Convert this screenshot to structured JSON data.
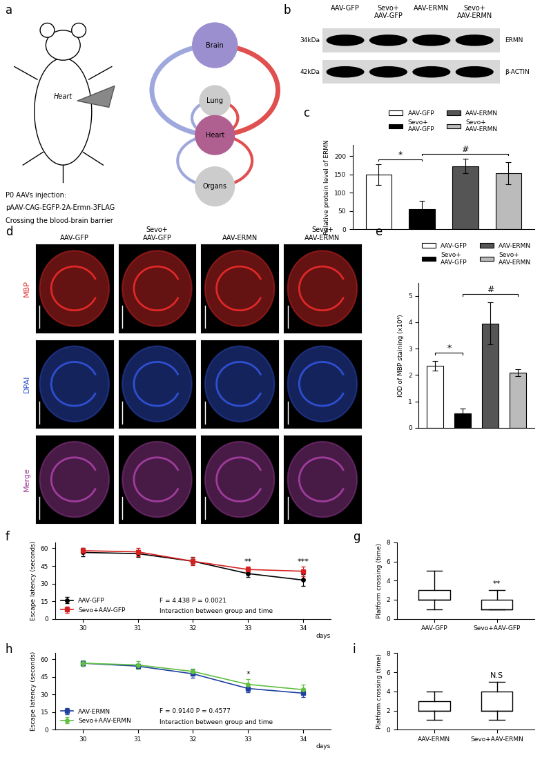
{
  "panel_labels": [
    "a",
    "b",
    "c",
    "d",
    "e",
    "f",
    "g",
    "h",
    "i"
  ],
  "schematic": {
    "mouse_label": "Heart",
    "organs": [
      "Brain",
      "Lung",
      "Heart",
      "Organs"
    ],
    "injection_text": [
      "P0 AAVs injection:",
      "pAAV-CAG-EGFP-2A-Ermn-3FLAG",
      "Crossing the blood-brain barrier"
    ]
  },
  "western_blot": {
    "lanes": [
      "AAV-GFP",
      "Sevo+\nAAV-GFP",
      "AAV-ERMN",
      "Sevo+\nAAV-ERMN"
    ],
    "rows": [
      {
        "size": "34kDa",
        "protein": "ERMN"
      },
      {
        "size": "42kDa",
        "protein": "β-ACTIN"
      }
    ]
  },
  "staining": {
    "columns": [
      "AAV-GFP",
      "Sevo+\nAAV-GFP",
      "AAV-ERMN",
      "Sevo+\nAAV-ERMN"
    ],
    "rows": [
      {
        "label": "MBP",
        "color": "#e02828"
      },
      {
        "label": "DPAI",
        "color": "#2f4fd0"
      },
      {
        "label": "Merge",
        "color": "#a03c9c"
      }
    ]
  },
  "chart_data": [
    {
      "type": "bar",
      "categories": [
        "AAV-GFP",
        "Sevo+\nAAV-GFP",
        "AAV-ERMN",
        "Sevo+\nAAV-ERMN"
      ],
      "values": [
        150,
        55,
        173,
        153
      ],
      "errors": [
        28,
        22,
        20,
        30
      ],
      "colors": [
        "#ffffff",
        "#000000",
        "#555555",
        "#bbbbbb"
      ],
      "ylabel": "Relative protein level of ERMN",
      "ylim": [
        0,
        230
      ],
      "yticks": [
        0,
        50,
        100,
        150,
        200
      ],
      "tick_labels": "y",
      "legend": "lower center",
      "comparisons": [
        {
          "groups": [
            "AAV-GFP",
            "Sevo+\nAAV-GFP"
          ],
          "label": "*"
        },
        {
          "groups": [
            "Sevo+\nAAV-GFP",
            "Sevo+\nAAV-ERMN"
          ],
          "label": "#"
        }
      ]
    },
    {
      "type": "bar",
      "categories": [
        "AAV-GFP",
        "Sevo+\nAAV-GFP",
        "AAV-ERMN",
        "Sevo+\nAAV-ERMN"
      ],
      "values": [
        2.35,
        0.55,
        3.95,
        2.08
      ],
      "errors": [
        0.18,
        0.18,
        0.8,
        0.13
      ],
      "colors": [
        "#ffffff",
        "#000000",
        "#555555",
        "#bbbbbb"
      ],
      "ylabel": "IOD of MBP staining (x10⁴)",
      "ylim": [
        0,
        5.5
      ],
      "yticks": [
        0,
        1,
        2,
        3,
        4,
        5
      ],
      "tick_labels": "y",
      "legend": "lower center",
      "comparisons": [
        {
          "groups": [
            "AAV-GFP",
            "Sevo+\nAAV-GFP"
          ],
          "label": "*"
        },
        {
          "groups": [
            "Sevo+\nAAV-GFP",
            "Sevo+\nAAV-ERMN"
          ],
          "label": "#"
        }
      ]
    },
    {
      "type": "line",
      "x": [
        30,
        31,
        32,
        33,
        34
      ],
      "xlim": [
        29.5,
        34.5
      ],
      "xticks": [
        30,
        31,
        32,
        33,
        34
      ],
      "ylim": [
        0,
        65
      ],
      "yticks": [
        0,
        15,
        30,
        45,
        60
      ],
      "xlabel": "days",
      "ylabel": "Escape latency (seconds)",
      "series": [
        {
          "name": "AAV-GFP",
          "color": "#000000",
          "marker": "o",
          "values": [
            56.5,
            55.5,
            49,
            38.5,
            33
          ],
          "errors": [
            3.5,
            3,
            3,
            3,
            5
          ]
        },
        {
          "name": "Sevo+AAV-GFP",
          "color": "#d62020",
          "marker": "s",
          "values": [
            58,
            57,
            49,
            42,
            40.5
          ],
          "errors": [
            2.5,
            3.5,
            3.5,
            2.5,
            4
          ]
        }
      ],
      "annotations": [
        "F = 4.438 P = 0.0021",
        "Interaction between group and time"
      ],
      "significance": [
        {
          "x": 33,
          "label": "**"
        },
        {
          "x": 34,
          "label": "***"
        }
      ],
      "legend": "lower left"
    },
    {
      "type": "box",
      "categories": [
        "AAV-GFP",
        "Sevo+AAV-GFP"
      ],
      "boxes": [
        {
          "min": 1,
          "q1": 2,
          "median": 2,
          "q3": 3,
          "max": 5
        },
        {
          "min": 1,
          "q1": 1,
          "median": 1,
          "q3": 2,
          "max": 3
        }
      ],
      "ylabel": "Platform crossing (time)",
      "ylim": [
        0,
        8
      ],
      "yticks": [
        0,
        2,
        4,
        6,
        8
      ],
      "significance": [
        {
          "category": "Sevo+AAV-GFP",
          "label": "**"
        }
      ]
    },
    {
      "type": "line",
      "x": [
        30,
        31,
        32,
        33,
        34
      ],
      "xlim": [
        29.5,
        34.5
      ],
      "xticks": [
        30,
        31,
        32,
        33,
        34
      ],
      "ylim": [
        0,
        65
      ],
      "yticks": [
        0,
        15,
        30,
        45,
        60
      ],
      "xlabel": "days",
      "ylabel": "Escape latency (seconds)",
      "series": [
        {
          "name": "AAV-ERMN",
          "color": "#2040a0",
          "marker": "s",
          "values": [
            56.5,
            54,
            47.5,
            35,
            31
          ],
          "errors": [
            2.5,
            2,
            3.5,
            3,
            3.5
          ]
        },
        {
          "name": "Sevo+AAV-ERMN",
          "color": "#60c040",
          "marker": "o",
          "values": [
            56.5,
            55,
            49.5,
            38.5,
            34
          ],
          "errors": [
            2.5,
            3,
            2.5,
            4.5,
            4
          ]
        }
      ],
      "annotations": [
        "F = 0.9140 P = 0.4577",
        "Interaction between group and time"
      ],
      "significance": [
        {
          "x": 33,
          "label": "*"
        }
      ],
      "legend": "lower left"
    },
    {
      "type": "box",
      "categories": [
        "AAV-ERMN",
        "Sevo+AAV-ERMN"
      ],
      "boxes": [
        {
          "min": 1,
          "q1": 2,
          "median": 2,
          "q3": 3,
          "max": 4
        },
        {
          "min": 1,
          "q1": 2,
          "median": 2,
          "q3": 4,
          "max": 5
        }
      ],
      "ylabel": "Platform crossing (time)",
      "ylim": [
        0,
        8
      ],
      "yticks": [
        0,
        2,
        4,
        6,
        8
      ],
      "significance": [
        {
          "category": "Sevo+AAV-ERMN",
          "label": "N.S"
        }
      ]
    }
  ]
}
